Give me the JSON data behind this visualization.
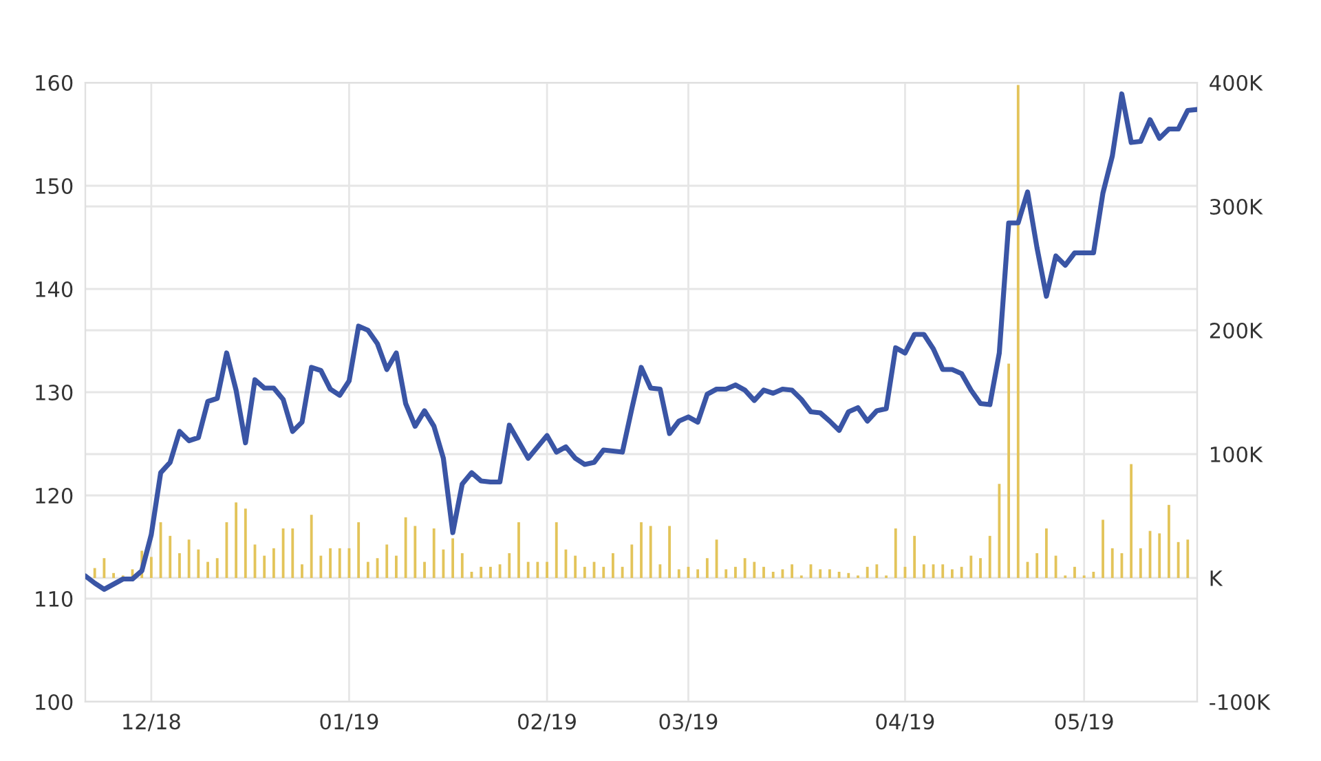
{
  "chart_data": {
    "type": "line",
    "categories": [
      null,
      null,
      null,
      null,
      null,
      null,
      null,
      "12/18",
      null,
      null,
      null,
      null,
      null,
      null,
      null,
      null,
      null,
      null,
      null,
      null,
      null,
      null,
      null,
      null,
      null,
      null,
      null,
      null,
      "01/19",
      null,
      null,
      null,
      null,
      null,
      null,
      null,
      null,
      null,
      null,
      null,
      null,
      null,
      null,
      null,
      null,
      null,
      null,
      null,
      null,
      "02/19",
      null,
      null,
      null,
      null,
      null,
      null,
      null,
      null,
      null,
      null,
      null,
      null,
      null,
      null,
      "03/19",
      null,
      null,
      null,
      null,
      null,
      null,
      null,
      null,
      null,
      null,
      null,
      null,
      null,
      null,
      null,
      null,
      null,
      null,
      null,
      null,
      null,
      null,
      "04/19",
      null,
      null,
      null,
      null,
      null,
      null,
      null,
      null,
      null,
      null,
      null,
      null,
      null,
      null,
      null,
      null,
      null,
      null,
      "05/19",
      null,
      null,
      null,
      null,
      null,
      null,
      null,
      null,
      null,
      null,
      null,
      null
    ],
    "ylim": [
      100,
      160
    ],
    "yticks": [
      100,
      110,
      120,
      130,
      140,
      150,
      160
    ],
    "y2lim": [
      -100,
      400
    ],
    "y2ticks": [
      {
        "value": -100,
        "label": "-100K"
      },
      {
        "value": 0,
        "label": "K"
      },
      {
        "value": 100,
        "label": "100K"
      },
      {
        "value": 200,
        "label": "200K"
      },
      {
        "value": 300,
        "label": "300K"
      },
      {
        "value": 400,
        "label": "400K"
      }
    ],
    "grid": true,
    "series": [
      {
        "type": "bar",
        "axis": "y2",
        "color": "#e3c45a",
        "values": [
          null,
          8,
          16,
          4,
          2,
          7,
          22,
          17,
          45,
          34,
          20,
          31,
          23,
          13,
          16,
          45,
          61,
          56,
          27,
          18,
          24,
          40,
          40,
          11,
          51,
          18,
          24,
          24,
          24,
          45,
          13,
          16,
          27,
          18,
          49,
          42,
          13,
          40,
          23,
          32,
          20,
          5,
          9,
          9,
          11,
          20,
          45,
          13,
          13,
          13,
          45,
          23,
          18,
          9,
          13,
          9,
          20,
          9,
          27,
          45,
          42,
          11,
          42,
          7,
          9,
          7,
          16,
          31,
          7,
          9,
          16,
          13,
          9,
          5,
          7,
          11,
          2,
          11,
          7,
          7,
          5,
          4,
          2,
          9,
          11,
          2,
          40,
          9,
          34,
          11,
          11,
          11,
          7,
          9,
          18,
          16,
          34,
          76,
          173,
          398,
          13,
          20,
          40,
          18,
          2,
          9,
          2,
          5,
          47,
          24,
          20,
          92,
          24,
          38,
          36,
          59,
          29,
          31,
          null
        ]
      },
      {
        "axis": "y",
        "color": "#3a55a5",
        "values": [
          112.2,
          111.5,
          110.9,
          111.4,
          111.9,
          111.9,
          112.7,
          116.2,
          122.2,
          123.2,
          126.2,
          125.3,
          125.6,
          129.1,
          129.4,
          133.8,
          130.2,
          125.1,
          131.2,
          130.4,
          130.4,
          129.3,
          126.2,
          127.1,
          132.4,
          132.1,
          130.3,
          129.7,
          131.1,
          136.4,
          136,
          134.7,
          132.2,
          133.8,
          128.9,
          126.7,
          128.2,
          126.7,
          123.6,
          116.4,
          121.1,
          122.2,
          121.4,
          121.3,
          121.3,
          126.8,
          125.2,
          123.6,
          124.7,
          125.8,
          124.2,
          124.7,
          123.6,
          123,
          123.2,
          124.4,
          124.3,
          124.2,
          128.4,
          132.4,
          130.4,
          130.3,
          126,
          127.2,
          127.6,
          127.1,
          129.8,
          130.3,
          130.3,
          130.7,
          130.2,
          129.2,
          130.2,
          129.9,
          130.3,
          130.2,
          129.3,
          128.1,
          128,
          127.2,
          126.3,
          128.1,
          128.5,
          127.2,
          128.2,
          128.4,
          134.3,
          133.8,
          135.6,
          135.6,
          134.2,
          132.2,
          132.2,
          131.8,
          130.2,
          128.9,
          128.8,
          133.8,
          146.4,
          146.4,
          149.4,
          144,
          139.3,
          143.2,
          142.3,
          143.5,
          143.5,
          143.5,
          149.3,
          152.9,
          158.9,
          154.2,
          154.3,
          156.4,
          154.6,
          155.5,
          155.5,
          157.3,
          157.4
        ]
      }
    ]
  }
}
